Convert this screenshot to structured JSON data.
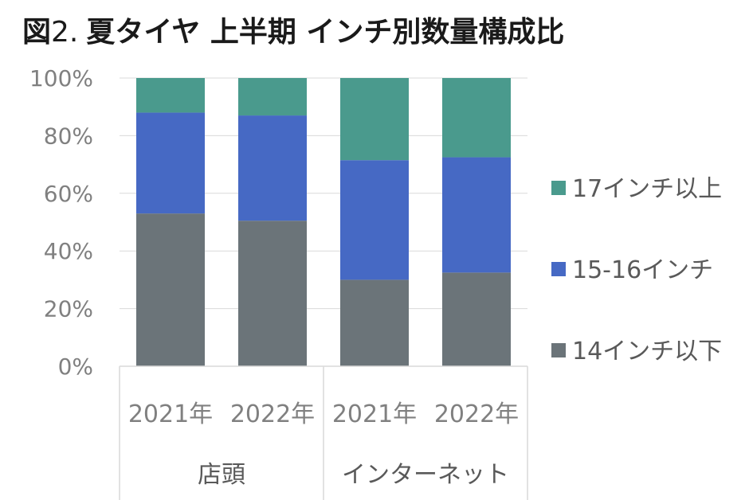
{
  "title": {
    "prefix": "図",
    "num": "2.",
    "rest": "夏タイヤ 上半期 インチ別数量構成比"
  },
  "chart_data": {
    "type": "bar",
    "stacked": true,
    "ylim": [
      0,
      100
    ],
    "yticks": [
      "0%",
      "20%",
      "40%",
      "60%",
      "80%",
      "100%"
    ],
    "categories": [
      "2021年",
      "2022年",
      "2021年",
      "2022年"
    ],
    "groups": [
      {
        "label": "店頭",
        "span": [
          0,
          1
        ]
      },
      {
        "label": "インターネット",
        "span": [
          2,
          3
        ]
      }
    ],
    "series": [
      {
        "name": "14インチ以下",
        "color": "#6b7479",
        "values": [
          53,
          50.5,
          30,
          32.5
        ]
      },
      {
        "name": "15-16インチ",
        "color": "#4669c4",
        "values": [
          35,
          36.5,
          41.5,
          40
        ]
      },
      {
        "name": "17インチ以上",
        "color": "#4a9a8d",
        "values": [
          12,
          13,
          28.5,
          27.5
        ]
      }
    ],
    "grid": true,
    "legend_position": "right"
  }
}
